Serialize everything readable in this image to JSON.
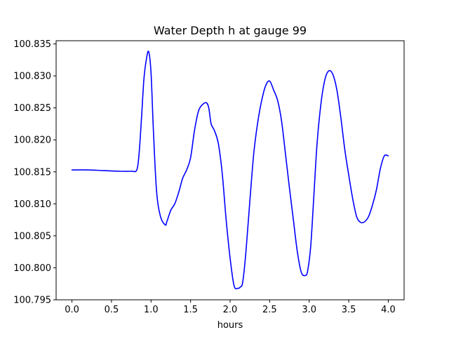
{
  "chart_data": {
    "type": "line",
    "title": "Water Depth h at gauge 99",
    "xlabel": "hours",
    "ylabel": "",
    "xlim": [
      -0.2,
      4.2
    ],
    "ylim": [
      100.795,
      100.8355
    ],
    "x_ticks": [
      0.0,
      0.5,
      1.0,
      1.5,
      2.0,
      2.5,
      3.0,
      3.5,
      4.0
    ],
    "x_tick_labels": [
      "0.0",
      "0.5",
      "1.0",
      "1.5",
      "2.0",
      "2.5",
      "3.0",
      "3.5",
      "4.0"
    ],
    "y_ticks": [
      100.795,
      100.8,
      100.805,
      100.81,
      100.815,
      100.82,
      100.825,
      100.83,
      100.835
    ],
    "y_tick_labels": [
      "100.795",
      "100.800",
      "100.805",
      "100.810",
      "100.815",
      "100.820",
      "100.825",
      "100.830",
      "100.835"
    ],
    "grid": false,
    "legend": "none",
    "series": [
      {
        "color": "#0000ff",
        "x": [
          0.0,
          0.2,
          0.4,
          0.6,
          0.75,
          0.82,
          0.85,
          0.88,
          0.91,
          0.94,
          0.97,
          1.0,
          1.03,
          1.07,
          1.12,
          1.18,
          1.2,
          1.25,
          1.3,
          1.35,
          1.4,
          1.45,
          1.5,
          1.55,
          1.6,
          1.65,
          1.7,
          1.73,
          1.76,
          1.8,
          1.85,
          1.9,
          1.95,
          2.0,
          2.05,
          2.1,
          2.13,
          2.16,
          2.2,
          2.25,
          2.3,
          2.35,
          2.4,
          2.45,
          2.5,
          2.55,
          2.6,
          2.65,
          2.7,
          2.75,
          2.8,
          2.85,
          2.9,
          2.95,
          2.98,
          3.02,
          3.06,
          3.1,
          3.15,
          3.2,
          3.25,
          3.3,
          3.35,
          3.4,
          3.45,
          3.5,
          3.55,
          3.6,
          3.65,
          3.7,
          3.75,
          3.8,
          3.85,
          3.9,
          3.95,
          4.0
        ],
        "y": [
          100.8153,
          100.8153,
          100.8152,
          100.8151,
          100.8151,
          100.8153,
          100.818,
          100.8235,
          100.8295,
          100.8325,
          100.8338,
          100.8305,
          100.8215,
          100.812,
          100.808,
          100.8067,
          100.8072,
          100.809,
          100.81,
          100.8118,
          100.814,
          100.8153,
          100.8172,
          100.8215,
          100.8245,
          100.8255,
          100.8258,
          100.825,
          100.8225,
          100.8215,
          100.8195,
          100.8148,
          100.8075,
          100.8015,
          100.7972,
          100.7968,
          100.797,
          100.7978,
          100.8025,
          100.8105,
          100.818,
          100.8228,
          100.8262,
          100.8285,
          100.8292,
          100.8278,
          100.8262,
          100.823,
          100.8178,
          100.8125,
          100.8075,
          100.8025,
          100.7993,
          100.7988,
          100.7995,
          100.8035,
          100.8115,
          100.8195,
          100.8258,
          100.8295,
          100.8308,
          100.8302,
          100.8278,
          100.8235,
          100.8185,
          100.8145,
          100.8108,
          100.808,
          100.8071,
          100.8072,
          100.808,
          100.8098,
          100.8122,
          100.8155,
          100.8175,
          100.8175
        ]
      }
    ]
  }
}
